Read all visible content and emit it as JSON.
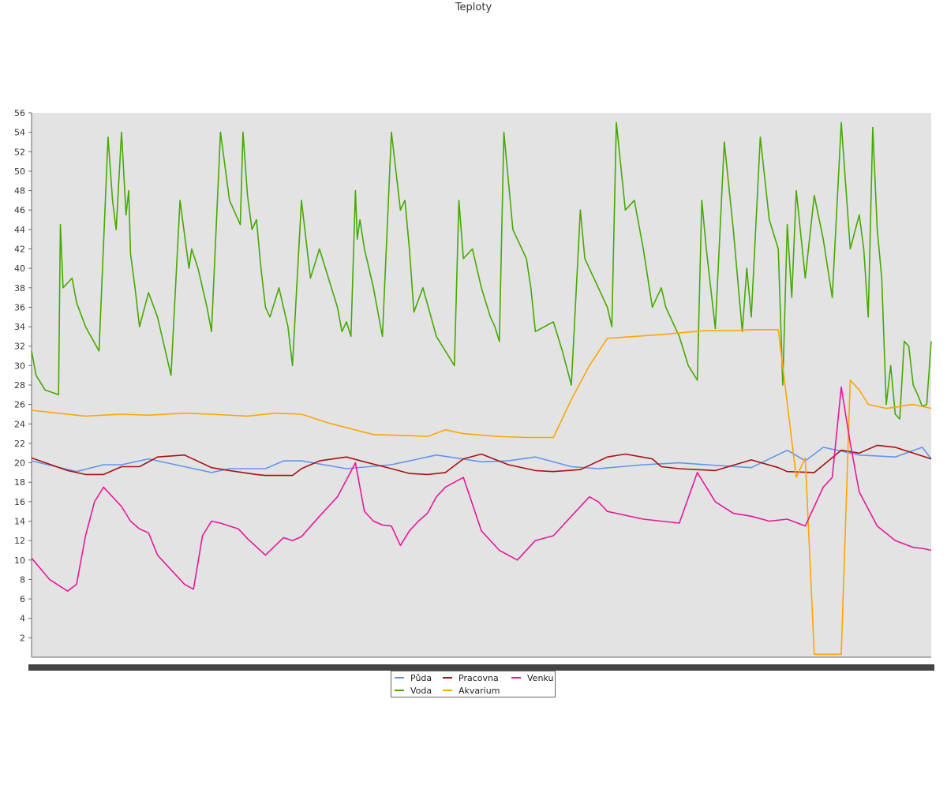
{
  "chart_data": {
    "type": "line",
    "title": "Teploty",
    "xlabel": "",
    "ylabel": "",
    "ylim": [
      0,
      56
    ],
    "yticks": [
      2,
      4,
      6,
      8,
      10,
      12,
      14,
      16,
      18,
      20,
      22,
      24,
      26,
      28,
      30,
      32,
      34,
      36,
      38,
      40,
      42,
      44,
      46,
      48,
      50,
      52,
      54,
      56
    ],
    "xlim": [
      0,
      1
    ],
    "grid": false,
    "legend_position": "bottom-center",
    "series": [
      {
        "name": "Půda",
        "color": "#6495ed",
        "x": [
          0,
          0.05,
          0.08,
          0.1,
          0.13,
          0.16,
          0.2,
          0.22,
          0.26,
          0.28,
          0.3,
          0.35,
          0.4,
          0.42,
          0.45,
          0.5,
          0.53,
          0.56,
          0.6,
          0.63,
          0.68,
          0.72,
          0.75,
          0.8,
          0.84,
          0.86,
          0.88,
          0.92,
          0.96,
          0.99,
          1.0
        ],
        "y": [
          20.2,
          19.1,
          19.8,
          19.8,
          20.4,
          19.8,
          19.0,
          19.4,
          19.4,
          20.2,
          20.2,
          19.4,
          19.8,
          20.2,
          20.8,
          20.1,
          20.2,
          20.6,
          19.6,
          19.4,
          19.8,
          20.0,
          19.8,
          19.5,
          21.3,
          20.2,
          21.6,
          20.8,
          20.6,
          21.6,
          20.4
        ]
      },
      {
        "name": "Voda",
        "color": "#44aa00",
        "x": [
          0,
          0.005,
          0.015,
          0.03,
          0.032,
          0.035,
          0.045,
          0.05,
          0.06,
          0.075,
          0.085,
          0.09,
          0.094,
          0.1,
          0.105,
          0.108,
          0.11,
          0.115,
          0.12,
          0.13,
          0.14,
          0.15,
          0.155,
          0.165,
          0.175,
          0.178,
          0.185,
          0.195,
          0.2,
          0.21,
          0.22,
          0.232,
          0.235,
          0.24,
          0.245,
          0.25,
          0.255,
          0.26,
          0.265,
          0.275,
          0.28,
          0.285,
          0.29,
          0.3,
          0.31,
          0.32,
          0.33,
          0.34,
          0.345,
          0.35,
          0.355,
          0.36,
          0.362,
          0.365,
          0.37,
          0.375,
          0.38,
          0.39,
          0.4,
          0.41,
          0.415,
          0.42,
          0.425,
          0.435,
          0.45,
          0.47,
          0.475,
          0.48,
          0.49,
          0.5,
          0.51,
          0.515,
          0.52,
          0.525,
          0.535,
          0.55,
          0.555,
          0.56,
          0.58,
          0.59,
          0.6,
          0.61,
          0.615,
          0.62,
          0.63,
          0.64,
          0.645,
          0.65,
          0.66,
          0.67,
          0.68,
          0.69,
          0.7,
          0.705,
          0.72,
          0.73,
          0.74,
          0.745,
          0.75,
          0.76,
          0.77,
          0.78,
          0.79,
          0.795,
          0.8,
          0.81,
          0.82,
          0.83,
          0.835,
          0.84,
          0.845,
          0.85,
          0.86,
          0.87,
          0.88,
          0.89,
          0.9,
          0.91,
          0.92,
          0.925,
          0.93,
          0.935,
          0.94,
          0.945,
          0.95,
          0.955,
          0.96,
          0.965,
          0.97,
          0.975,
          0.98,
          0.985,
          0.99,
          0.995,
          1.0
        ],
        "y": [
          31.5,
          29,
          27.5,
          27,
          44.5,
          38,
          39,
          36.5,
          34,
          31.5,
          53.5,
          47,
          44,
          54,
          45.5,
          48,
          41.5,
          38,
          34,
          37.5,
          35,
          31,
          29,
          47,
          40,
          42,
          40,
          36,
          33.5,
          54,
          47,
          44.5,
          54,
          47.5,
          44,
          45,
          40,
          36,
          35,
          38,
          36,
          34,
          30,
          47,
          39,
          42,
          39,
          36,
          33.5,
          34.5,
          33,
          48,
          43,
          45,
          42,
          40,
          38,
          33,
          54,
          46,
          47,
          42,
          35.5,
          38,
          33,
          30,
          47,
          41,
          42,
          38,
          35,
          34,
          32.5,
          54,
          44,
          41,
          38,
          33.5,
          34.5,
          31.5,
          28,
          46,
          41,
          40,
          38,
          36,
          34,
          55,
          46,
          47,
          42,
          36,
          38,
          36,
          33,
          30,
          28.5,
          47,
          42,
          33.8,
          53,
          44,
          33.5,
          40,
          35,
          53.5,
          45,
          42,
          28,
          44.5,
          37,
          48,
          39,
          47.5,
          43,
          37,
          55,
          42,
          45.5,
          42,
          35,
          54.5,
          44,
          39,
          26,
          30,
          25,
          24.5,
          32.5,
          32,
          28,
          27,
          25.8,
          26,
          32.5
        ]
      },
      {
        "name": "Pracovna",
        "color": "#aa1111",
        "x": [
          0,
          0.04,
          0.06,
          0.08,
          0.1,
          0.12,
          0.14,
          0.17,
          0.2,
          0.22,
          0.25,
          0.26,
          0.29,
          0.3,
          0.32,
          0.35,
          0.37,
          0.4,
          0.42,
          0.44,
          0.46,
          0.48,
          0.5,
          0.53,
          0.56,
          0.58,
          0.61,
          0.64,
          0.66,
          0.69,
          0.7,
          0.72,
          0.76,
          0.8,
          0.83,
          0.84,
          0.87,
          0.9,
          0.92,
          0.94,
          0.96,
          0.98,
          1.0
        ],
        "y": [
          20.5,
          19.2,
          18.8,
          18.8,
          19.6,
          19.6,
          20.6,
          20.8,
          19.5,
          19.2,
          18.8,
          18.7,
          18.7,
          19.4,
          20.2,
          20.6,
          20.1,
          19.4,
          18.9,
          18.8,
          19.0,
          20.4,
          20.9,
          19.8,
          19.2,
          19.1,
          19.3,
          20.6,
          20.9,
          20.4,
          19.6,
          19.4,
          19.2,
          20.3,
          19.5,
          19.1,
          19.0,
          21.3,
          21.0,
          21.8,
          21.6,
          21.0,
          20.4
        ]
      },
      {
        "name": "Akvarium",
        "color": "#ffa500",
        "x": [
          0,
          0.06,
          0.1,
          0.13,
          0.17,
          0.2,
          0.24,
          0.27,
          0.3,
          0.33,
          0.38,
          0.42,
          0.44,
          0.46,
          0.48,
          0.52,
          0.55,
          0.58,
          0.6,
          0.62,
          0.64,
          0.7,
          0.75,
          0.78,
          0.8,
          0.83,
          0.85,
          0.86,
          0.87,
          0.88,
          0.9,
          0.91,
          0.92,
          0.93,
          0.95,
          0.96,
          0.97,
          0.98,
          0.99,
          1.0
        ],
        "y": [
          25.4,
          24.8,
          25.0,
          24.9,
          25.1,
          25.0,
          24.8,
          25.1,
          25.0,
          24.1,
          22.9,
          22.8,
          22.7,
          23.4,
          23.0,
          22.7,
          22.6,
          22.6,
          26.5,
          30.0,
          32.8,
          33.2,
          33.6,
          33.6,
          33.7,
          33.7,
          18.5,
          20.5,
          0.3,
          0.3,
          0.3,
          28.5,
          27.5,
          26.0,
          25.6,
          25.7,
          25.9,
          26.0,
          25.8,
          25.6
        ]
      },
      {
        "name": "Venku",
        "color": "#e8179a",
        "x": [
          0,
          0.02,
          0.04,
          0.05,
          0.06,
          0.07,
          0.08,
          0.1,
          0.11,
          0.12,
          0.13,
          0.14,
          0.16,
          0.17,
          0.18,
          0.19,
          0.2,
          0.21,
          0.22,
          0.23,
          0.24,
          0.26,
          0.28,
          0.29,
          0.3,
          0.32,
          0.34,
          0.36,
          0.37,
          0.38,
          0.39,
          0.4,
          0.41,
          0.42,
          0.43,
          0.44,
          0.45,
          0.46,
          0.48,
          0.5,
          0.52,
          0.54,
          0.56,
          0.58,
          0.6,
          0.62,
          0.63,
          0.64,
          0.65,
          0.66,
          0.68,
          0.7,
          0.72,
          0.74,
          0.76,
          0.78,
          0.8,
          0.82,
          0.84,
          0.86,
          0.87,
          0.88,
          0.89,
          0.9,
          0.91,
          0.92,
          0.94,
          0.96,
          0.98,
          0.99,
          1.0
        ],
        "y": [
          10.2,
          8.0,
          6.8,
          7.5,
          12.5,
          16.0,
          17.5,
          15.5,
          14.0,
          13.2,
          12.8,
          10.5,
          8.5,
          7.5,
          7.0,
          12.5,
          14.0,
          13.8,
          13.5,
          13.2,
          12.2,
          10.5,
          12.3,
          12.0,
          12.4,
          14.5,
          16.5,
          20.0,
          15.0,
          14.0,
          13.6,
          13.5,
          11.5,
          13.0,
          14.0,
          14.8,
          16.5,
          17.5,
          18.5,
          13.0,
          11.0,
          10.0,
          12.0,
          12.5,
          14.5,
          16.5,
          16.0,
          15.0,
          14.8,
          14.6,
          14.2,
          14.0,
          13.8,
          19.0,
          16.0,
          14.8,
          14.5,
          14.0,
          14.2,
          13.5,
          15.5,
          17.5,
          18.5,
          27.8,
          22.0,
          17.0,
          13.5,
          12.0,
          11.3,
          11.2,
          11.0
        ]
      }
    ]
  }
}
